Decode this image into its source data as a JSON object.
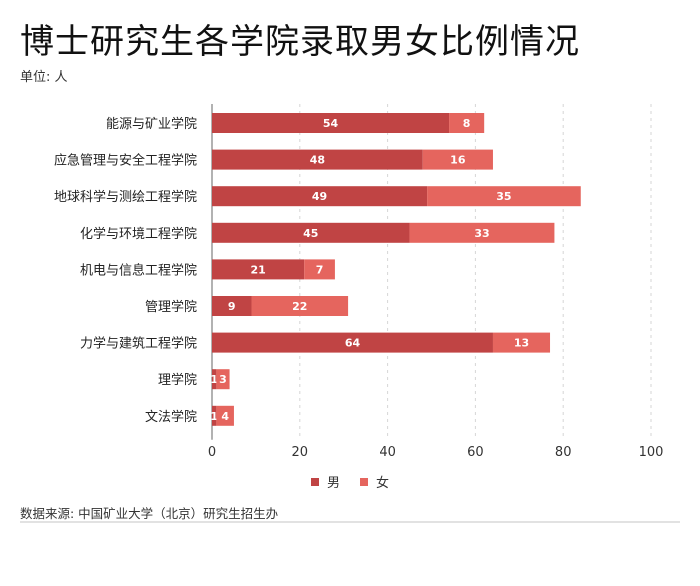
{
  "title": "博士研究生各学院录取男女比例情况",
  "unit": "单位: 人",
  "source": "数据来源: 中国矿业大学（北京）研究生招生办",
  "chart_data": {
    "type": "bar",
    "orientation": "horizontal",
    "stacked": true,
    "categories": [
      "能源与矿业学院",
      "应急管理与安全工程学院",
      "地球科学与测绘工程学院",
      "化学与环境工程学院",
      "机电与信息工程学院",
      "管理学院",
      "力学与建筑工程学院",
      "理学院",
      "文法学院"
    ],
    "series": [
      {
        "name": "男",
        "color": "#c04444",
        "values": [
          54,
          48,
          49,
          45,
          21,
          9,
          64,
          1,
          1
        ]
      },
      {
        "name": "女",
        "color": "#e5655e",
        "values": [
          8,
          16,
          35,
          33,
          7,
          22,
          13,
          3,
          4
        ]
      }
    ],
    "xlim": [
      0,
      100
    ],
    "xticks": [
      0,
      20,
      40,
      60,
      80,
      100
    ],
    "grid": true,
    "legend_position": "bottom"
  }
}
